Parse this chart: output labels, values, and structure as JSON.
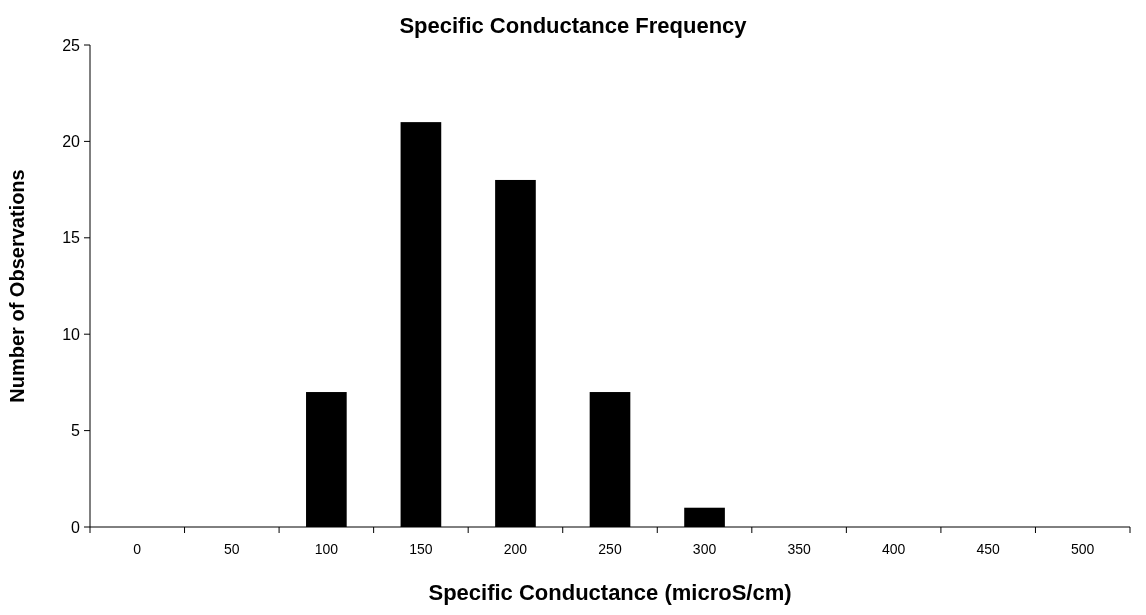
{
  "chart_data": {
    "type": "bar",
    "title": "Specific Conductance Frequency",
    "xlabel": "Specific Conductance (microS/cm)",
    "ylabel": "Number of Observations",
    "categories": [
      "0",
      "50",
      "100",
      "150",
      "200",
      "250",
      "300",
      "350",
      "400",
      "450",
      "500"
    ],
    "values": [
      0,
      0,
      7,
      21,
      18,
      7,
      1,
      0,
      0,
      0,
      0
    ],
    "color": "#000000",
    "ylim": [
      0,
      25
    ],
    "yticks": [
      0,
      5,
      10,
      15,
      20,
      25
    ],
    "grid": false
  }
}
